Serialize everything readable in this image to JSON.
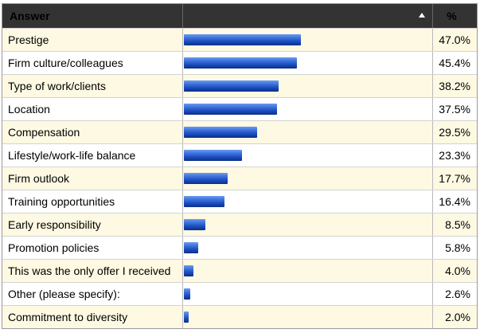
{
  "header": {
    "answer_label": "Answer",
    "percent_label": "%"
  },
  "chart_data": {
    "type": "bar",
    "xlabel": "",
    "ylabel": "",
    "ylim": [
      0,
      100
    ],
    "categories": [
      "Prestige",
      "Firm culture/colleagues",
      "Type of work/clients",
      "Location",
      "Compensation",
      "Lifestyle/work-life balance",
      "Firm outlook",
      "Training opportunities",
      "Early responsibility",
      "Promotion policies",
      "This was the only offer I received",
      "Other (please specify):",
      "Commitment to diversity"
    ],
    "values": [
      47.0,
      45.4,
      38.2,
      37.5,
      29.5,
      23.3,
      17.7,
      16.4,
      8.5,
      5.8,
      4.0,
      2.6,
      2.0
    ],
    "value_labels": [
      "47.0%",
      "45.4%",
      "38.2%",
      "37.5%",
      "29.5%",
      "23.3%",
      "17.7%",
      "16.4%",
      "8.5%",
      "5.8%",
      "4.0%",
      "2.6%",
      "2.0%"
    ]
  },
  "colors": {
    "header_bg": "#333333",
    "row_alt_bg": "#fdf9e2",
    "bar": "#2458c8"
  }
}
